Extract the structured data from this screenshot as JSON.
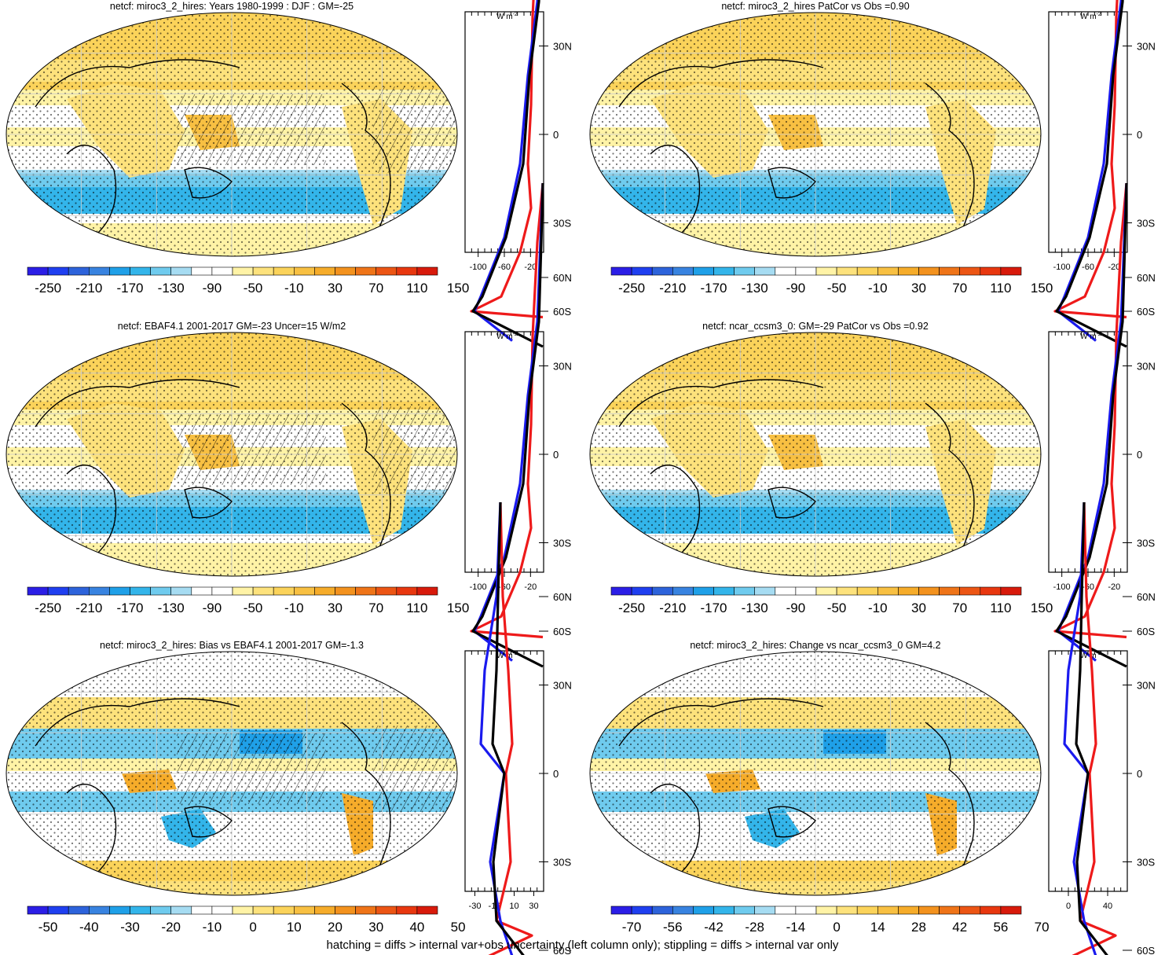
{
  "panels": [
    {
      "title": "netcf: miroc3_2_hires: Years 1980-1999 : DJF : GM=-25",
      "colorbar": [
        "-250",
        "-210",
        "-170",
        "-130",
        "-90",
        "-50",
        "-10",
        "30",
        "70",
        "110",
        "150"
      ],
      "profile_xticks": [
        "-100",
        "-60",
        "-20"
      ],
      "profile_lat_ticks": [
        "60N",
        "30N",
        "0",
        "30S",
        "60S"
      ],
      "profile_units": "W m",
      "units_superscript": "-2",
      "map_style": "mean"
    },
    {
      "title": "netcf: miroc3_2_hires PatCor vs Obs =0.90",
      "colorbar": [
        "-250",
        "-210",
        "-170",
        "-130",
        "-90",
        "-50",
        "-10",
        "30",
        "70",
        "110",
        "150"
      ],
      "profile_xticks": [
        "-100",
        "-60",
        "-20"
      ],
      "profile_lat_ticks": [
        "60N",
        "30N",
        "0",
        "30S",
        "60S"
      ],
      "profile_units": "W m",
      "units_superscript": "-2",
      "map_style": "mean"
    },
    {
      "title": "netcf: EBAF4.1 2001-2017 GM=-23 Uncer=15 W/m2",
      "colorbar": [
        "-250",
        "-210",
        "-170",
        "-130",
        "-90",
        "-50",
        "-10",
        "30",
        "70",
        "110",
        "150"
      ],
      "profile_xticks": [
        "-100",
        "-60",
        "-20"
      ],
      "profile_lat_ticks": [
        "60N",
        "30N",
        "0",
        "30S",
        "60S"
      ],
      "profile_units": "W m",
      "units_superscript": "-2",
      "map_style": "mean"
    },
    {
      "title": "netcf: ncar_ccsm3_0: GM=-29 PatCor vs Obs =0.92",
      "colorbar": [
        "-250",
        "-210",
        "-170",
        "-130",
        "-90",
        "-50",
        "-10",
        "30",
        "70",
        "110",
        "150"
      ],
      "profile_xticks": [
        "-100",
        "-60",
        "-20"
      ],
      "profile_lat_ticks": [
        "60N",
        "30N",
        "0",
        "30S",
        "60S"
      ],
      "profile_units": "W m",
      "units_superscript": "-2",
      "map_style": "mean"
    },
    {
      "title": "netcf: miroc3_2_hires: Bias vs EBAF4.1 2001-2017 GM=-1.3",
      "colorbar": [
        "-50",
        "-40",
        "-30",
        "-20",
        "-10",
        "0",
        "10",
        "20",
        "30",
        "40",
        "50"
      ],
      "profile_xticks": [
        "-30",
        "-10",
        "10",
        "30"
      ],
      "profile_lat_ticks": [
        "60N",
        "30N",
        "0",
        "30S",
        "60S"
      ],
      "profile_units": "W m",
      "units_superscript": "-2",
      "map_style": "diff"
    },
    {
      "title": "netcf: miroc3_2_hires: Change vs ncar_ccsm3_0 GM=4.2",
      "colorbar": [
        "-70",
        "-56",
        "-42",
        "-28",
        "-14",
        "0",
        "14",
        "28",
        "42",
        "56",
        "70"
      ],
      "profile_xticks": [
        "0",
        "40"
      ],
      "profile_lat_ticks": [
        "60N",
        "30N",
        "0",
        "30S",
        "60S"
      ],
      "profile_units": "W m",
      "units_superscript": "-2",
      "map_style": "diff"
    }
  ],
  "colors": {
    "palette": [
      "#2b1ee6",
      "#1f3ff0",
      "#2d63db",
      "#3883e0",
      "#1fa0e8",
      "#33b5ea",
      "#6fcbee",
      "#a6dcf2",
      "#ffffff",
      "#ffffff",
      "#fff3a6",
      "#fde27c",
      "#fbd35a",
      "#f8c042",
      "#f6ac2a",
      "#f3921e",
      "#ef7418",
      "#ec5514",
      "#e8370f",
      "#d81a0b"
    ],
    "profile_model": "#1a1aee",
    "profile_obs": "#ee1a1a",
    "profile_other": "#000000"
  },
  "footnote": "hatching = diffs > internal var+obs uncertainty (left column only); stippling = diffs > internal var only"
}
